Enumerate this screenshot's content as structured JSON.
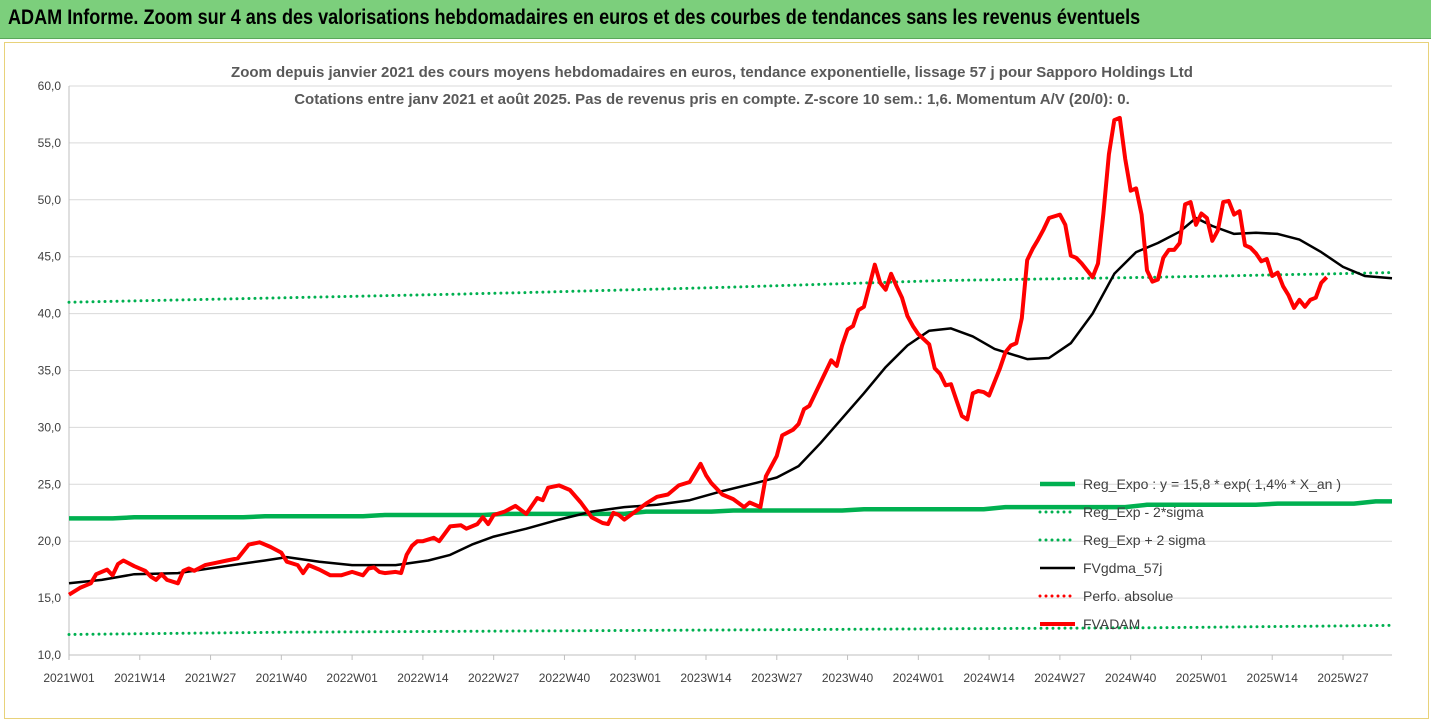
{
  "header": {
    "title": "ADAM Informe. Zoom sur 4 ans des valorisations hebdomadaires en euros et des courbes de tendances sans les revenus éventuels"
  },
  "chart_data": {
    "type": "line",
    "title_lines": [
      "Zoom depuis janvier 2021 des cours moyens hebdomadaires en euros, tendance exponentielle, lissage 57 j pour Sapporo Holdings Ltd",
      "Cotations entre janv 2021 et août 2025.  Pas de revenus pris en compte. Z-score 10 sem.: 1,6. Momentum A/V (20/0): 0."
    ],
    "y_ticks": [
      "10,0",
      "15,0",
      "20,0",
      "25,0",
      "30,0",
      "35,0",
      "40,0",
      "45,0",
      "50,0",
      "55,0",
      "60,0"
    ],
    "ylim": [
      10,
      60
    ],
    "x_ticks": [
      {
        "label": "2021W01",
        "week": 0
      },
      {
        "label": "2021W14",
        "week": 13
      },
      {
        "label": "2021W27",
        "week": 26
      },
      {
        "label": "2021W40",
        "week": 39
      },
      {
        "label": "2022W01",
        "week": 52
      },
      {
        "label": "2022W14",
        "week": 65
      },
      {
        "label": "2022W27",
        "week": 78
      },
      {
        "label": "2022W40",
        "week": 91
      },
      {
        "label": "2023W01",
        "week": 104
      },
      {
        "label": "2023W14",
        "week": 117
      },
      {
        "label": "2023W27",
        "week": 130
      },
      {
        "label": "2023W40",
        "week": 143
      },
      {
        "label": "2024W01",
        "week": 156
      },
      {
        "label": "2024W14",
        "week": 169
      },
      {
        "label": "2024W27",
        "week": 182
      },
      {
        "label": "2024W40",
        "week": 195
      },
      {
        "label": "2025W01",
        "week": 208
      },
      {
        "label": "2025W14",
        "week": 221
      },
      {
        "label": "2025W27",
        "week": 234
      }
    ],
    "xlim": [
      0,
      243
    ],
    "legend": [
      {
        "key": "reg_expo",
        "label": "Reg_Expo : y = 15,8 * exp( 1,4% *  X_an )",
        "color": "#00b050",
        "style": "solid-thick"
      },
      {
        "key": "reg_minus",
        "label": "Reg_Exp - 2*sigma",
        "color": "#00b050",
        "style": "dotted"
      },
      {
        "key": "reg_plus",
        "label": "Reg_Exp + 2 sigma",
        "color": "#00b050",
        "style": "dotted"
      },
      {
        "key": "fvgdma",
        "label": "FVgdma_57j",
        "color": "#000000",
        "style": "solid"
      },
      {
        "key": "perfo",
        "label": "Perfo. absolue",
        "color": "#ff0000",
        "style": "dotted"
      },
      {
        "key": "fvadam",
        "label": "FVADAM",
        "color": "#ff0000",
        "style": "solid-thick"
      }
    ],
    "series": [
      {
        "key": "reg_expo",
        "points": [
          [
            0,
            22.0
          ],
          [
            8,
            22.0
          ],
          [
            12,
            22.1
          ],
          [
            32,
            22.1
          ],
          [
            36,
            22.2
          ],
          [
            54,
            22.2
          ],
          [
            58,
            22.3
          ],
          [
            76,
            22.3
          ],
          [
            80,
            22.4
          ],
          [
            102,
            22.4
          ],
          [
            106,
            22.6
          ],
          [
            118,
            22.6
          ],
          [
            122,
            22.7
          ],
          [
            142,
            22.7
          ],
          [
            146,
            22.8
          ],
          [
            168,
            22.8
          ],
          [
            172,
            23.0
          ],
          [
            194,
            23.0
          ],
          [
            198,
            23.2
          ],
          [
            218,
            23.2
          ],
          [
            222,
            23.3
          ],
          [
            236,
            23.3
          ],
          [
            240,
            23.5
          ],
          [
            243,
            23.5
          ]
        ]
      },
      {
        "key": "reg_minus",
        "points": [
          [
            0,
            11.8
          ],
          [
            40,
            12.0
          ],
          [
            80,
            12.1
          ],
          [
            120,
            12.2
          ],
          [
            160,
            12.3
          ],
          [
            200,
            12.4
          ],
          [
            243,
            12.6
          ]
        ]
      },
      {
        "key": "reg_plus",
        "points": [
          [
            0,
            41.0
          ],
          [
            40,
            41.4
          ],
          [
            80,
            41.8
          ],
          [
            120,
            42.3
          ],
          [
            160,
            42.9
          ],
          [
            200,
            43.2
          ],
          [
            243,
            43.6
          ]
        ]
      },
      {
        "key": "fvgdma",
        "points": [
          [
            0,
            16.3
          ],
          [
            6,
            16.6
          ],
          [
            12,
            17.1
          ],
          [
            20,
            17.2
          ],
          [
            30,
            17.9
          ],
          [
            36,
            18.3
          ],
          [
            40,
            18.6
          ],
          [
            46,
            18.2
          ],
          [
            52,
            17.9
          ],
          [
            60,
            17.9
          ],
          [
            66,
            18.3
          ],
          [
            70,
            18.8
          ],
          [
            74,
            19.7
          ],
          [
            78,
            20.4
          ],
          [
            84,
            21.1
          ],
          [
            90,
            21.9
          ],
          [
            96,
            22.6
          ],
          [
            102,
            23.0
          ],
          [
            108,
            23.2
          ],
          [
            114,
            23.6
          ],
          [
            120,
            24.4
          ],
          [
            126,
            25.1
          ],
          [
            130,
            25.6
          ],
          [
            134,
            26.6
          ],
          [
            138,
            28.6
          ],
          [
            142,
            30.8
          ],
          [
            146,
            33.0
          ],
          [
            150,
            35.3
          ],
          [
            154,
            37.2
          ],
          [
            158,
            38.5
          ],
          [
            162,
            38.7
          ],
          [
            166,
            38.0
          ],
          [
            170,
            36.9
          ],
          [
            176,
            36.0
          ],
          [
            180,
            36.1
          ],
          [
            184,
            37.4
          ],
          [
            188,
            40.0
          ],
          [
            192,
            43.5
          ],
          [
            196,
            45.4
          ],
          [
            200,
            46.2
          ],
          [
            204,
            47.2
          ],
          [
            207,
            48.4
          ],
          [
            210,
            47.7
          ],
          [
            214,
            47.0
          ],
          [
            218,
            47.1
          ],
          [
            222,
            47.0
          ],
          [
            226,
            46.5
          ],
          [
            230,
            45.4
          ],
          [
            234,
            44.1
          ],
          [
            238,
            43.3
          ],
          [
            243,
            43.1
          ]
        ]
      },
      {
        "key": "fvadam",
        "points": [
          [
            0,
            15.3
          ],
          [
            2,
            15.9
          ],
          [
            4,
            16.3
          ],
          [
            5,
            17.1
          ],
          [
            7,
            17.5
          ],
          [
            8,
            17.0
          ],
          [
            9,
            18.0
          ],
          [
            10,
            18.3
          ],
          [
            12,
            17.8
          ],
          [
            14,
            17.4
          ],
          [
            15,
            16.9
          ],
          [
            16,
            16.6
          ],
          [
            17,
            17.1
          ],
          [
            18,
            16.6
          ],
          [
            20,
            16.3
          ],
          [
            21,
            17.4
          ],
          [
            22,
            17.6
          ],
          [
            23,
            17.4
          ],
          [
            25,
            17.9
          ],
          [
            27,
            18.1
          ],
          [
            29,
            18.3
          ],
          [
            31,
            18.5
          ],
          [
            33,
            19.7
          ],
          [
            35,
            19.9
          ],
          [
            37,
            19.5
          ],
          [
            39,
            19.0
          ],
          [
            40,
            18.2
          ],
          [
            42,
            17.9
          ],
          [
            43,
            17.2
          ],
          [
            44,
            17.9
          ],
          [
            46,
            17.5
          ],
          [
            48,
            17.0
          ],
          [
            50,
            17.0
          ],
          [
            52,
            17.3
          ],
          [
            54,
            17.0
          ],
          [
            55,
            17.6
          ],
          [
            56,
            17.7
          ],
          [
            57,
            17.3
          ],
          [
            58,
            17.2
          ],
          [
            60,
            17.3
          ],
          [
            61,
            17.2
          ],
          [
            62,
            18.8
          ],
          [
            63,
            19.6
          ],
          [
            64,
            20.0
          ],
          [
            65,
            20.0
          ],
          [
            67,
            20.3
          ],
          [
            68,
            20.0
          ],
          [
            70,
            21.3
          ],
          [
            72,
            21.4
          ],
          [
            73,
            21.1
          ],
          [
            75,
            21.5
          ],
          [
            76,
            22.1
          ],
          [
            77,
            21.5
          ],
          [
            78,
            22.3
          ],
          [
            80,
            22.6
          ],
          [
            82,
            23.1
          ],
          [
            84,
            22.4
          ],
          [
            86,
            23.8
          ],
          [
            87,
            23.6
          ],
          [
            88,
            24.7
          ],
          [
            90,
            24.9
          ],
          [
            92,
            24.5
          ],
          [
            94,
            23.4
          ],
          [
            96,
            22.1
          ],
          [
            98,
            21.6
          ],
          [
            99,
            21.5
          ],
          [
            100,
            22.5
          ],
          [
            101,
            22.3
          ],
          [
            102,
            21.9
          ],
          [
            104,
            22.6
          ],
          [
            106,
            23.3
          ],
          [
            108,
            23.9
          ],
          [
            110,
            24.1
          ],
          [
            112,
            24.9
          ],
          [
            114,
            25.2
          ],
          [
            116,
            26.8
          ],
          [
            117,
            25.8
          ],
          [
            118,
            25.1
          ],
          [
            120,
            24.1
          ],
          [
            122,
            23.7
          ],
          [
            124,
            23.0
          ],
          [
            125,
            23.4
          ],
          [
            127,
            23.0
          ],
          [
            128,
            25.7
          ],
          [
            130,
            27.5
          ],
          [
            131,
            29.3
          ],
          [
            133,
            29.8
          ],
          [
            134,
            30.3
          ],
          [
            135,
            31.6
          ],
          [
            136,
            31.9
          ],
          [
            138,
            33.9
          ],
          [
            140,
            35.9
          ],
          [
            141,
            35.4
          ],
          [
            142,
            37.2
          ],
          [
            143,
            38.6
          ],
          [
            144,
            38.9
          ],
          [
            145,
            40.3
          ],
          [
            146,
            40.6
          ],
          [
            148,
            44.3
          ],
          [
            149,
            42.7
          ],
          [
            150,
            42.1
          ],
          [
            151,
            43.5
          ],
          [
            152,
            42.4
          ],
          [
            153,
            41.4
          ],
          [
            154,
            39.8
          ],
          [
            155,
            38.9
          ],
          [
            156,
            38.2
          ],
          [
            158,
            37.3
          ],
          [
            159,
            35.2
          ],
          [
            160,
            34.7
          ],
          [
            161,
            33.7
          ],
          [
            162,
            33.8
          ],
          [
            163,
            32.4
          ],
          [
            164,
            31.0
          ],
          [
            165,
            30.7
          ],
          [
            166,
            33.0
          ],
          [
            167,
            33.2
          ],
          [
            168,
            33.1
          ],
          [
            169,
            32.8
          ],
          [
            171,
            35.2
          ],
          [
            172,
            36.6
          ],
          [
            173,
            37.2
          ],
          [
            174,
            37.4
          ],
          [
            175,
            39.6
          ],
          [
            176,
            44.7
          ],
          [
            177,
            45.7
          ],
          [
            178,
            46.5
          ],
          [
            179,
            47.4
          ],
          [
            180,
            48.4
          ],
          [
            182,
            48.7
          ],
          [
            183,
            47.8
          ],
          [
            184,
            45.1
          ],
          [
            185,
            44.9
          ],
          [
            186,
            44.4
          ],
          [
            188,
            43.2
          ],
          [
            189,
            44.4
          ],
          [
            190,
            48.8
          ],
          [
            191,
            54.0
          ],
          [
            192,
            57.0
          ],
          [
            193,
            57.2
          ],
          [
            194,
            53.6
          ],
          [
            195,
            50.8
          ],
          [
            196,
            51.0
          ],
          [
            197,
            48.7
          ],
          [
            198,
            43.8
          ],
          [
            199,
            42.8
          ],
          [
            200,
            43.0
          ],
          [
            201,
            44.9
          ],
          [
            202,
            45.6
          ],
          [
            203,
            45.6
          ],
          [
            204,
            46.2
          ],
          [
            205,
            49.6
          ],
          [
            206,
            49.8
          ],
          [
            207,
            47.8
          ],
          [
            208,
            48.8
          ],
          [
            209,
            48.4
          ],
          [
            210,
            46.4
          ],
          [
            211,
            47.3
          ],
          [
            212,
            49.8
          ],
          [
            213,
            49.9
          ],
          [
            214,
            48.7
          ],
          [
            215,
            49.0
          ],
          [
            216,
            46.0
          ],
          [
            217,
            45.8
          ],
          [
            218,
            45.3
          ],
          [
            219,
            44.6
          ],
          [
            220,
            44.8
          ],
          [
            221,
            43.3
          ],
          [
            222,
            43.6
          ],
          [
            223,
            42.4
          ],
          [
            224,
            41.6
          ],
          [
            225,
            40.5
          ],
          [
            226,
            41.2
          ],
          [
            227,
            40.6
          ],
          [
            228,
            41.2
          ],
          [
            229,
            41.4
          ],
          [
            230,
            42.7
          ],
          [
            231,
            43.2
          ]
        ]
      }
    ]
  }
}
